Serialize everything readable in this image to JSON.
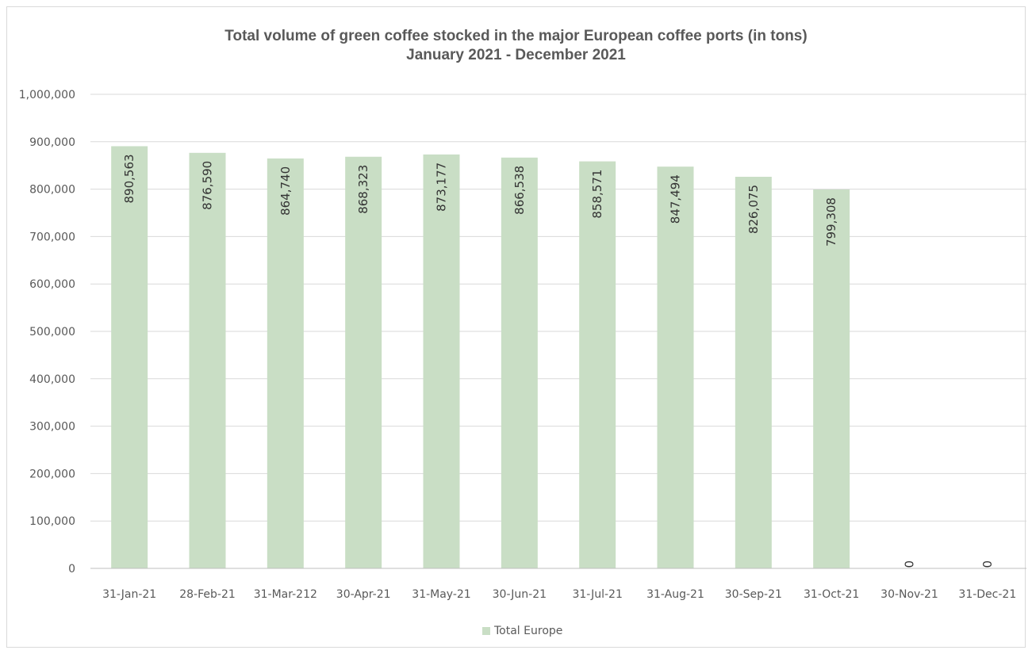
{
  "chart_data": {
    "type": "bar",
    "title": "Total volume of green coffee stocked in the major European coffee ports (in tons)",
    "subtitle": "January 2021 - December 2021",
    "categories": [
      "31-Jan-21",
      "28-Feb-21",
      "31-Mar-212",
      "30-Apr-21",
      "31-May-21",
      "30-Jun-21",
      "31-Jul-21",
      "31-Aug-21",
      "30-Sep-21",
      "31-Oct-21",
      "30-Nov-21",
      "31-Dec-21"
    ],
    "series": [
      {
        "name": "Total Europe",
        "values": [
          890563,
          876590,
          864740,
          868323,
          873177,
          866538,
          858571,
          847494,
          826075,
          799308,
          0,
          0
        ],
        "labels": [
          "890,563",
          "876,590",
          "864,740",
          "868,323",
          "873,177",
          "866,538",
          "858,571",
          "847,494",
          "826,075",
          "799,308",
          "0",
          "0"
        ],
        "color": "#c9dec5"
      }
    ],
    "ylim": [
      0,
      1000000
    ],
    "yticks": [
      0,
      100000,
      200000,
      300000,
      400000,
      500000,
      600000,
      700000,
      800000,
      900000,
      1000000
    ],
    "ytick_labels": [
      "0",
      "100,000",
      "200,000",
      "300,000",
      "400,000",
      "500,000",
      "600,000",
      "700,000",
      "800,000",
      "900,000",
      "1,000,000"
    ],
    "xlabel": "",
    "ylabel": "",
    "grid": true,
    "legend_position": "bottom-center"
  }
}
